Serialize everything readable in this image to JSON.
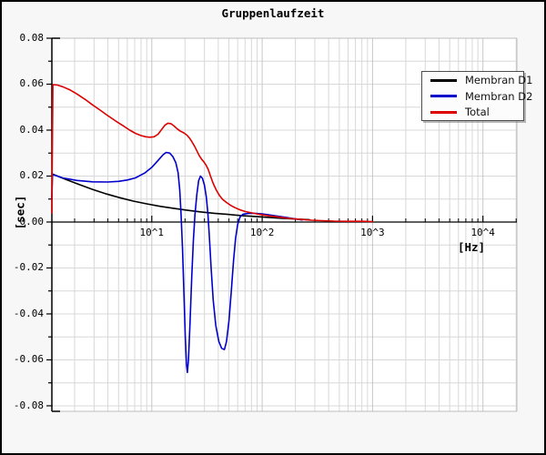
{
  "title": "Gruppenlaufzeit",
  "axes": {
    "x": {
      "unit": "[Hz]",
      "scale": "log",
      "min": 1.244,
      "max": 20300,
      "decade_values": [
        10,
        100,
        1000,
        10000
      ],
      "decade_labels": [
        "10^1",
        "10^2",
        "10^3",
        "10^4"
      ]
    },
    "y": {
      "unit": "[sec]",
      "min": -0.0824,
      "max": 0.08,
      "grid_step": 0.01,
      "minor_tick_step": 0.01,
      "major_tick_step": 0.02,
      "tick_values": [
        0.08,
        0.06,
        0.04,
        0.02,
        0,
        -0.02,
        -0.04,
        -0.06,
        -0.08
      ],
      "tick_labels": [
        "0.08",
        "0.06",
        "0.04",
        "0.02",
        "0.00",
        "-0.02",
        "-0.04",
        "-0.06",
        "-0.08"
      ]
    }
  },
  "legend": {
    "items": [
      {
        "label": "Membran D1",
        "color": "#000000"
      },
      {
        "label": "Membran D2",
        "color": "#0000cc"
      },
      {
        "label": "Total",
        "color": "#dd0000"
      }
    ]
  },
  "colors": {
    "figure_bg": "#f7f7f7",
    "plot_bg": "#ffffff",
    "grid_minor": "#d8d8d8",
    "grid_major": "#c6c6c6",
    "frame": "#bdbdbd",
    "axis": "#000000"
  },
  "chart_data": {
    "type": "line",
    "title": "Gruppenlaufzeit",
    "xlabel": "[Hz]",
    "ylabel": "[sec]",
    "x_scale": "log",
    "xlim": [
      1.244,
      20300
    ],
    "ylim": [
      -0.0824,
      0.08
    ],
    "grid": true,
    "legend_position": "upper right",
    "series": [
      {
        "name": "Membran D1",
        "color": "#000000",
        "points": [
          [
            1.244,
            0.021
          ],
          [
            1.65,
            0.0186
          ],
          [
            2.2,
            0.0163
          ],
          [
            2.9,
            0.0142
          ],
          [
            3.9,
            0.0122
          ],
          [
            5.1,
            0.0106
          ],
          [
            6.8,
            0.0091
          ],
          [
            9.0,
            0.0079
          ],
          [
            12,
            0.0068
          ],
          [
            16,
            0.0059
          ],
          [
            21,
            0.0051
          ],
          [
            28,
            0.0044
          ],
          [
            37,
            0.0038
          ],
          [
            49,
            0.0033
          ],
          [
            65,
            0.0028
          ],
          [
            87,
            0.0024
          ],
          [
            115,
            0.002
          ],
          [
            152,
            0.0016
          ],
          [
            202,
            0.0013
          ],
          [
            268,
            0.001
          ]
        ]
      },
      {
        "name": "Membran D2",
        "color": "#0000cc",
        "points": [
          [
            1.244,
            0.0105
          ],
          [
            1.26,
            0.0207
          ],
          [
            1.56,
            0.0192
          ],
          [
            2.1,
            0.0181
          ],
          [
            2.9,
            0.0175
          ],
          [
            4.0,
            0.0174
          ],
          [
            5.0,
            0.0177
          ],
          [
            6.0,
            0.0183
          ],
          [
            7.1,
            0.0192
          ],
          [
            8.6,
            0.0213
          ],
          [
            10,
            0.0238
          ],
          [
            11.4,
            0.0268
          ],
          [
            12.6,
            0.0292
          ],
          [
            13.5,
            0.0303
          ],
          [
            14.5,
            0.03
          ],
          [
            15.5,
            0.0285
          ],
          [
            16.5,
            0.0258
          ],
          [
            17.3,
            0.0215
          ],
          [
            17.9,
            0.014
          ],
          [
            18.4,
            0.004
          ],
          [
            19.0,
            -0.012
          ],
          [
            19.6,
            -0.032
          ],
          [
            20.1,
            -0.05
          ],
          [
            20.6,
            -0.062
          ],
          [
            21.0,
            -0.0655
          ],
          [
            21.5,
            -0.06
          ],
          [
            22.2,
            -0.044
          ],
          [
            23.0,
            -0.024
          ],
          [
            23.8,
            -0.008
          ],
          [
            24.6,
            0.003
          ],
          [
            25.6,
            0.012
          ],
          [
            26.6,
            0.018
          ],
          [
            27.6,
            0.02
          ],
          [
            28.8,
            0.019
          ],
          [
            30.0,
            0.016
          ],
          [
            31.2,
            0.011
          ],
          [
            32.2,
            0.004
          ],
          [
            33.2,
            -0.006
          ],
          [
            34.5,
            -0.02
          ],
          [
            36.0,
            -0.034
          ],
          [
            38.0,
            -0.045
          ],
          [
            40.5,
            -0.052
          ],
          [
            43.0,
            -0.055
          ],
          [
            45.5,
            -0.0555
          ],
          [
            47.5,
            -0.052
          ],
          [
            50.0,
            -0.043
          ],
          [
            52.5,
            -0.03
          ],
          [
            55.0,
            -0.017
          ],
          [
            57.5,
            -0.007
          ],
          [
            60.0,
            -0.001
          ],
          [
            63.0,
            0.0022
          ],
          [
            67.0,
            0.0034
          ],
          [
            75.0,
            0.0038
          ],
          [
            85.0,
            0.0038
          ],
          [
            100,
            0.0035
          ],
          [
            120,
            0.003
          ],
          [
            140,
            0.0025
          ],
          [
            165,
            0.002
          ],
          [
            195,
            0.0014
          ],
          [
            230,
            0.0009
          ]
        ]
      },
      {
        "name": "Total",
        "color": "#dd0000",
        "points": [
          [
            1.244,
            0.004
          ],
          [
            1.27,
            0.0598
          ],
          [
            1.4,
            0.0596
          ],
          [
            1.56,
            0.0589
          ],
          [
            1.8,
            0.0576
          ],
          [
            2.1,
            0.0557
          ],
          [
            2.5,
            0.0533
          ],
          [
            2.9,
            0.051
          ],
          [
            3.4,
            0.0487
          ],
          [
            4.0,
            0.0463
          ],
          [
            4.7,
            0.044
          ],
          [
            5.5,
            0.0419
          ],
          [
            6.3,
            0.04
          ],
          [
            7.1,
            0.0386
          ],
          [
            8.0,
            0.0376
          ],
          [
            8.8,
            0.0371
          ],
          [
            9.6,
            0.0369
          ],
          [
            10.5,
            0.0371
          ],
          [
            11.4,
            0.0382
          ],
          [
            12.3,
            0.0403
          ],
          [
            13.2,
            0.0422
          ],
          [
            14.0,
            0.043
          ],
          [
            14.9,
            0.0428
          ],
          [
            15.9,
            0.0418
          ],
          [
            17.0,
            0.0405
          ],
          [
            18.2,
            0.0395
          ],
          [
            19.5,
            0.0388
          ],
          [
            20.8,
            0.0378
          ],
          [
            22.0,
            0.0365
          ],
          [
            23.2,
            0.0348
          ],
          [
            24.4,
            0.033
          ],
          [
            25.6,
            0.031
          ],
          [
            27.0,
            0.0288
          ],
          [
            28.4,
            0.0272
          ],
          [
            29.6,
            0.0262
          ],
          [
            31.0,
            0.0248
          ],
          [
            32.5,
            0.0228
          ],
          [
            34.0,
            0.02
          ],
          [
            36.0,
            0.0168
          ],
          [
            38.5,
            0.0138
          ],
          [
            41.0,
            0.0116
          ],
          [
            44.0,
            0.0098
          ],
          [
            47.5,
            0.0085
          ],
          [
            52.0,
            0.0072
          ],
          [
            57.0,
            0.0062
          ],
          [
            63.0,
            0.0053
          ],
          [
            70.0,
            0.0046
          ],
          [
            80.0,
            0.004
          ],
          [
            90.0,
            0.0035
          ],
          [
            100,
            0.0031
          ],
          [
            115,
            0.0027
          ],
          [
            135,
            0.0023
          ],
          [
            160,
            0.0018
          ],
          [
            190,
            0.0014
          ],
          [
            230,
            0.0011
          ],
          [
            280,
            0.0008
          ],
          [
            350,
            0.0006
          ],
          [
            450,
            0.0004
          ],
          [
            600,
            0.0003
          ],
          [
            800,
            0.0003
          ],
          [
            1000,
            0.0002
          ]
        ]
      }
    ]
  }
}
